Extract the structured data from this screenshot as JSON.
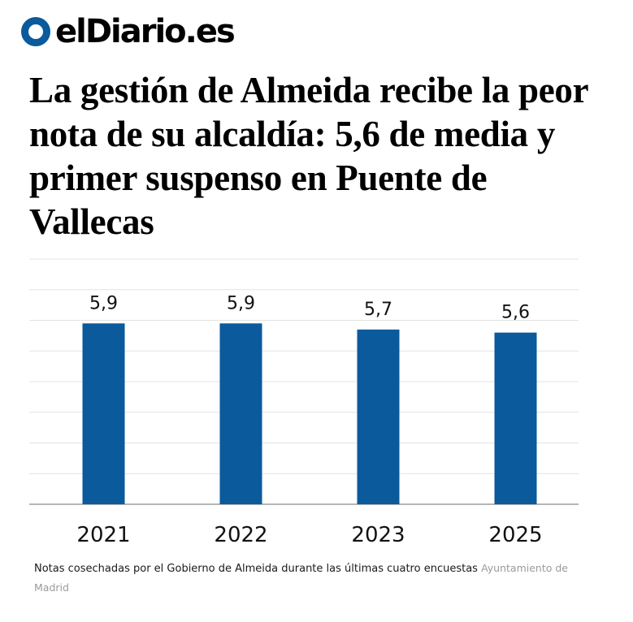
{
  "brand": {
    "logo_text": "elDiario.es",
    "logo_color": "#0a5a9c"
  },
  "article": {
    "headline": "La gestión de Almeida recibe la peor nota de su alcaldía: 5,6 de media y primer suspenso en Puente de Vallecas",
    "caption": "Notas cosechadas por el Gobierno de Almeida durante las últimas cuatro encuestas",
    "credit": "Ayuntamiento de Madrid"
  },
  "chart_data": {
    "type": "bar",
    "categories": [
      "2021",
      "2022",
      "2023",
      "2025"
    ],
    "values": [
      5.9,
      5.9,
      5.7,
      5.6
    ],
    "value_labels": [
      "5,9",
      "5,9",
      "5,7",
      "5,6"
    ],
    "title": "",
    "xlabel": "",
    "ylabel": "",
    "ylim": [
      0,
      8
    ],
    "grid": true,
    "bar_color": "#0a5a9c"
  }
}
